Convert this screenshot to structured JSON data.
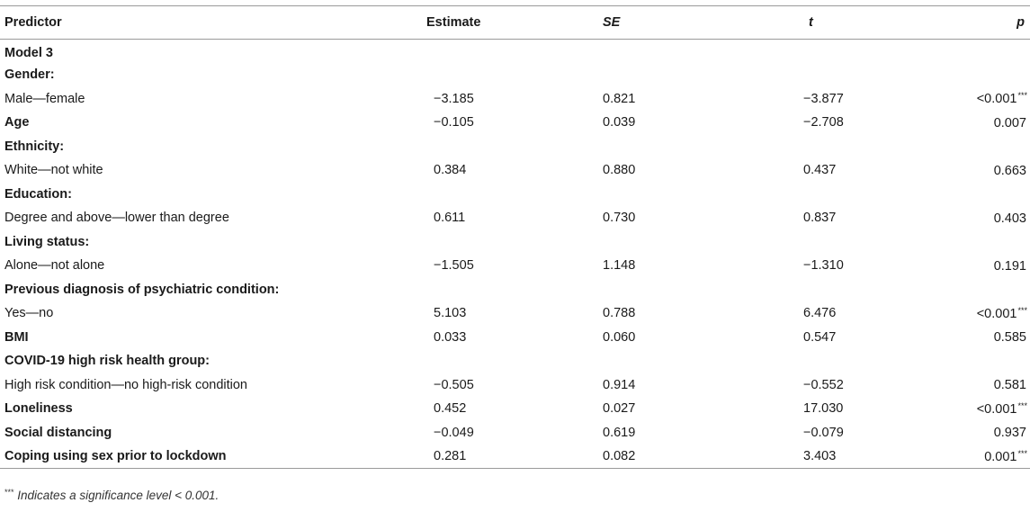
{
  "header": {
    "predictor": "Predictor",
    "estimate": "Estimate",
    "se": "SE",
    "t": "t",
    "p": "p"
  },
  "rows": [
    {
      "label": "Model 3",
      "bold": true,
      "estimate": "",
      "se": "",
      "t": "",
      "p": "",
      "sig": ""
    },
    {
      "label": "Gender:",
      "bold": true,
      "estimate": "",
      "se": "",
      "t": "",
      "p": "",
      "sig": ""
    },
    {
      "label": "Male—female",
      "bold": false,
      "estimate": "−3.185",
      "se": "0.821",
      "t": "−3.877",
      "p": "<0.001",
      "sig": "***"
    },
    {
      "label": "Age",
      "bold": true,
      "estimate": "−0.105",
      "se": "0.039",
      "t": "−2.708",
      "p": "0.007",
      "sig": ""
    },
    {
      "label": "Ethnicity:",
      "bold": true,
      "estimate": "",
      "se": "",
      "t": "",
      "p": "",
      "sig": ""
    },
    {
      "label": "White—not white",
      "bold": false,
      "estimate": "0.384",
      "se": "0.880",
      "t": "0.437",
      "p": "0.663",
      "sig": ""
    },
    {
      "label": "Education:",
      "bold": true,
      "estimate": "",
      "se": "",
      "t": "",
      "p": "",
      "sig": ""
    },
    {
      "label": "Degree and above—lower than degree",
      "bold": false,
      "estimate": "0.611",
      "se": "0.730",
      "t": "0.837",
      "p": "0.403",
      "sig": ""
    },
    {
      "label": "Living status:",
      "bold": true,
      "estimate": "",
      "se": "",
      "t": "",
      "p": "",
      "sig": ""
    },
    {
      "label": "Alone—not alone",
      "bold": false,
      "estimate": "−1.505",
      "se": "1.148",
      "t": "−1.310",
      "p": "0.191",
      "sig": ""
    },
    {
      "label": "Previous diagnosis of psychiatric condition:",
      "bold": true,
      "estimate": "",
      "se": "",
      "t": "",
      "p": "",
      "sig": ""
    },
    {
      "label": "Yes—no",
      "bold": false,
      "estimate": "5.103",
      "se": "0.788",
      "t": "6.476",
      "p": "<0.001",
      "sig": "***"
    },
    {
      "label": "BMI",
      "bold": true,
      "estimate": "0.033",
      "se": "0.060",
      "t": "0.547",
      "p": "0.585",
      "sig": ""
    },
    {
      "label": "COVID-19 high risk health group:",
      "bold": true,
      "estimate": "",
      "se": "",
      "t": "",
      "p": "",
      "sig": ""
    },
    {
      "label": "High risk condition—no high-risk condition",
      "bold": false,
      "estimate": "−0.505",
      "se": "0.914",
      "t": "−0.552",
      "p": "0.581",
      "sig": ""
    },
    {
      "label": "Loneliness",
      "bold": true,
      "estimate": "0.452",
      "se": "0.027",
      "t": "17.030",
      "p": "<0.001",
      "sig": "***"
    },
    {
      "label": "Social distancing",
      "bold": true,
      "estimate": "−0.049",
      "se": "0.619",
      "t": "−0.079",
      "p": "0.937",
      "sig": ""
    },
    {
      "label": "Coping using sex prior to lockdown",
      "bold": true,
      "estimate": "0.281",
      "se": "0.082",
      "t": "3.403",
      "p": "0.001",
      "sig": "***"
    }
  ],
  "footnote": {
    "sig": "***",
    "text": "Indicates a significance level < 0.001."
  }
}
